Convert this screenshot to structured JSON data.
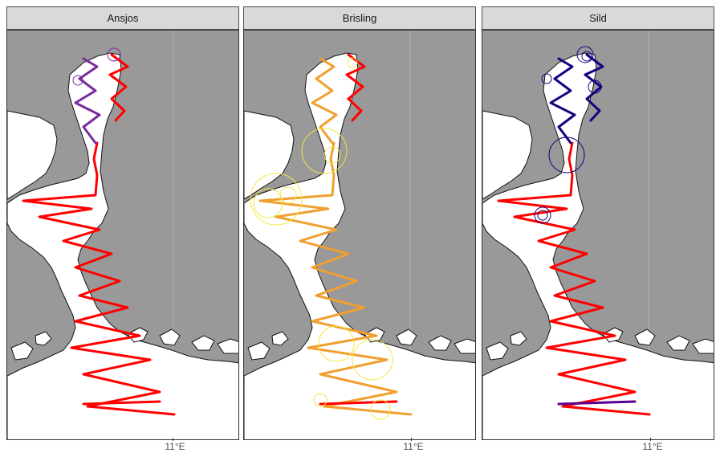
{
  "panels": [
    {
      "title": "Ansjos",
      "palette": "red-purple"
    },
    {
      "title": "Brisling",
      "palette": "orange-yellow"
    },
    {
      "title": "Sild",
      "palette": "red-navy"
    }
  ],
  "x_axis": {
    "tick_label": "11°E"
  },
  "colors": {
    "land": "#ffffff",
    "sea": "#999999",
    "grid": "#b3b3b3",
    "low": "#ff0000",
    "ansjos_high": "#7a2b9e",
    "brisling_mid": "#f0a030",
    "brisling_high": "#f5e642",
    "sild_mid": "#5a0090",
    "sild_high": "#1a0080"
  }
}
